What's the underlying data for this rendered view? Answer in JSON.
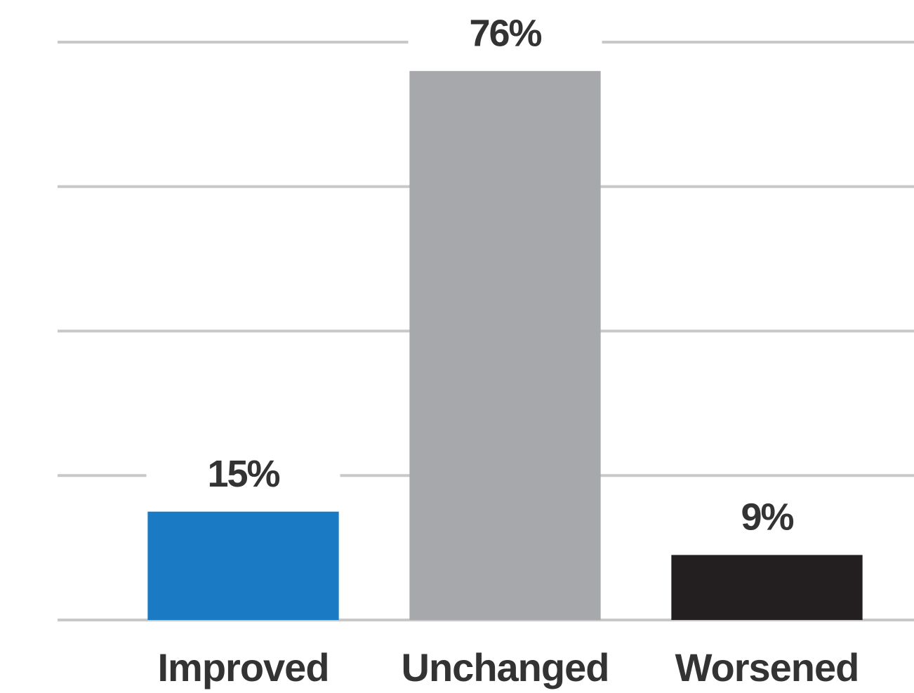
{
  "chart_data": {
    "type": "bar",
    "categories": [
      "Improved",
      "Unchanged",
      "Worsened"
    ],
    "values": [
      15,
      76,
      9
    ],
    "value_labels": [
      "15%",
      "76%",
      "9%"
    ],
    "colors": [
      "#1a7bc4",
      "#a7a8ab",
      "#231f20"
    ],
    "ylim": [
      0,
      80
    ],
    "yticks": [
      0,
      20,
      40,
      60,
      80
    ],
    "grid": true
  }
}
